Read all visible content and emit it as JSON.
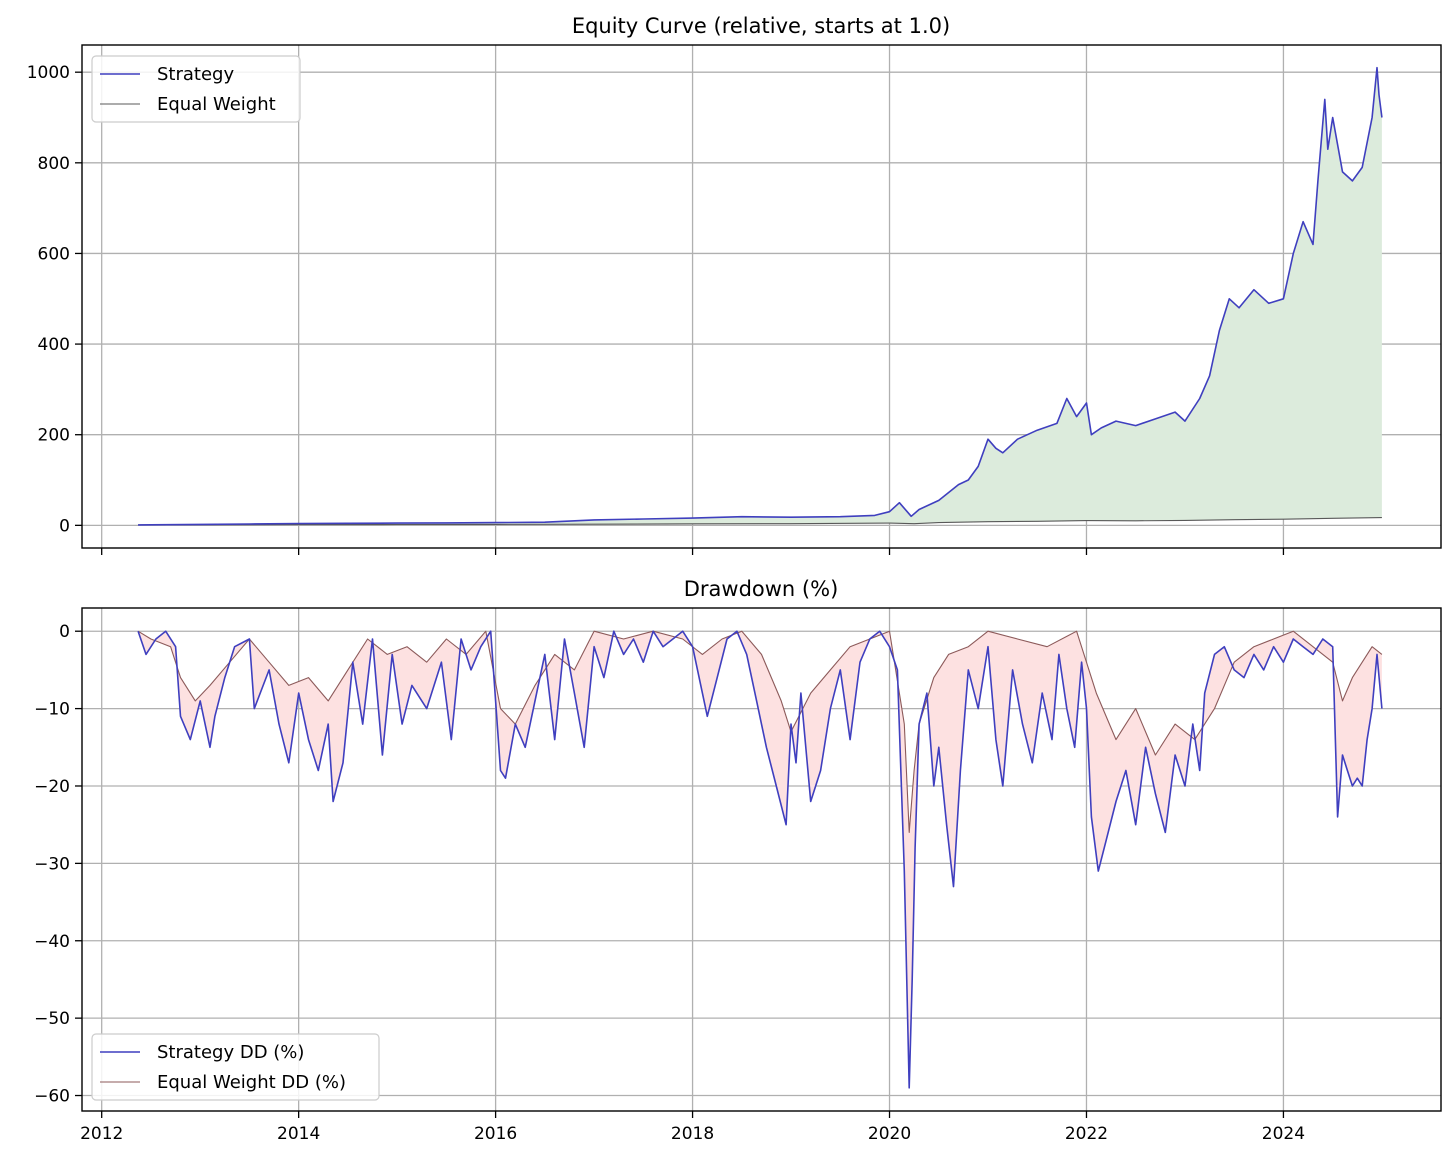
{
  "chart_data": [
    {
      "type": "line",
      "title": "Equity Curve (relative, starts at 1.0)",
      "xlabel": "",
      "ylabel": "",
      "xlim": [
        2011.8,
        2025.6
      ],
      "ylim": [
        -50,
        1060
      ],
      "x_ticks": [
        2012,
        2014,
        2016,
        2018,
        2020,
        2022,
        2024
      ],
      "x_tick_labels_visible": false,
      "y_ticks": [
        0,
        200,
        400,
        600,
        800,
        1000
      ],
      "y_tick_labels": [
        "0",
        "200",
        "400",
        "600",
        "800",
        "1000"
      ],
      "grid": true,
      "legend_position": "top-left",
      "fill_between_series": {
        "color": "#dcebdc",
        "description": "shaded area between Strategy and Equal Weight"
      },
      "series": [
        {
          "name": "Strategy",
          "color": "#3f3fbf",
          "x": [
            2012.37,
            2012.5,
            2013.0,
            2013.5,
            2014.0,
            2014.5,
            2015.0,
            2015.5,
            2016.0,
            2016.5,
            2017.0,
            2017.5,
            2018.0,
            2018.5,
            2019.0,
            2019.5,
            2019.85,
            2020.0,
            2020.1,
            2020.18,
            2020.22,
            2020.3,
            2020.5,
            2020.7,
            2020.8,
            2020.9,
            2021.0,
            2021.08,
            2021.15,
            2021.3,
            2021.5,
            2021.7,
            2021.8,
            2021.9,
            2022.0,
            2022.05,
            2022.15,
            2022.3,
            2022.5,
            2022.7,
            2022.9,
            2023.0,
            2023.15,
            2023.25,
            2023.35,
            2023.45,
            2023.55,
            2023.7,
            2023.85,
            2024.0,
            2024.1,
            2024.2,
            2024.3,
            2024.35,
            2024.42,
            2024.45,
            2024.5,
            2024.6,
            2024.7,
            2024.8,
            2024.9,
            2024.95,
            2024.97,
            2025.0
          ],
          "values": [
            1,
            1.3,
            2,
            3,
            4,
            4.5,
            5,
            5.5,
            6,
            7,
            12,
            14,
            16,
            19,
            18,
            19,
            22,
            30,
            50,
            30,
            20,
            35,
            55,
            90,
            100,
            130,
            190,
            170,
            160,
            190,
            210,
            225,
            280,
            240,
            270,
            200,
            215,
            230,
            220,
            235,
            250,
            230,
            280,
            330,
            430,
            500,
            480,
            520,
            490,
            500,
            600,
            670,
            620,
            760,
            940,
            830,
            900,
            780,
            760,
            790,
            900,
            1010,
            950,
            900
          ]
        },
        {
          "name": "Equal Weight",
          "color": "#595959",
          "x": [
            2012.37,
            2013.0,
            2014.0,
            2015.0,
            2016.0,
            2017.0,
            2018.0,
            2019.0,
            2020.0,
            2020.25,
            2020.5,
            2021.0,
            2021.5,
            2022.0,
            2022.5,
            2023.0,
            2023.5,
            2024.0,
            2024.5,
            2025.0
          ],
          "values": [
            1,
            1.3,
            1.6,
            1.8,
            2,
            2.6,
            3.3,
            3.7,
            5,
            3.6,
            6,
            8,
            9,
            10.5,
            10,
            11,
            12.5,
            13.5,
            15.5,
            17
          ]
        }
      ]
    },
    {
      "type": "line",
      "title": "Drawdown (%)",
      "xlabel": "",
      "ylabel": "",
      "xlim": [
        2011.8,
        2025.6
      ],
      "ylim": [
        -62,
        3
      ],
      "x_ticks": [
        2012,
        2014,
        2016,
        2018,
        2020,
        2022,
        2024
      ],
      "x_tick_labels": [
        "2012",
        "2014",
        "2016",
        "2018",
        "2020",
        "2022",
        "2024"
      ],
      "y_ticks": [
        0,
        -10,
        -20,
        -30,
        -40,
        -50,
        -60
      ],
      "y_tick_labels": [
        "0",
        "−10",
        "−20",
        "−30",
        "−40",
        "−50",
        "−60"
      ],
      "grid": true,
      "legend_position": "bottom-left",
      "fill_between_series": {
        "color": "#fde1e1",
        "description": "shaded area between Strategy DD and Equal Weight DD"
      },
      "series": [
        {
          "name": "Strategy DD (%)",
          "color": "#3f3fbf",
          "x": [
            2012.37,
            2012.45,
            2012.55,
            2012.65,
            2012.75,
            2012.8,
            2012.9,
            2013.0,
            2013.1,
            2013.15,
            2013.25,
            2013.35,
            2013.5,
            2013.55,
            2013.7,
            2013.8,
            2013.9,
            2014.0,
            2014.1,
            2014.2,
            2014.3,
            2014.35,
            2014.45,
            2014.55,
            2014.65,
            2014.75,
            2014.85,
            2014.95,
            2015.05,
            2015.15,
            2015.3,
            2015.45,
            2015.55,
            2015.65,
            2015.75,
            2015.85,
            2015.95,
            2016.05,
            2016.1,
            2016.2,
            2016.3,
            2016.4,
            2016.5,
            2016.6,
            2016.7,
            2016.8,
            2016.9,
            2017.0,
            2017.1,
            2017.2,
            2017.3,
            2017.4,
            2017.5,
            2017.6,
            2017.7,
            2017.8,
            2017.9,
            2018.0,
            2018.1,
            2018.15,
            2018.25,
            2018.35,
            2018.45,
            2018.55,
            2018.65,
            2018.75,
            2018.85,
            2018.95,
            2019.0,
            2019.05,
            2019.1,
            2019.2,
            2019.3,
            2019.4,
            2019.5,
            2019.6,
            2019.7,
            2019.8,
            2019.9,
            2020.0,
            2020.08,
            2020.15,
            2020.2,
            2020.23,
            2020.26,
            2020.3,
            2020.38,
            2020.45,
            2020.5,
            2020.58,
            2020.65,
            2020.72,
            2020.8,
            2020.9,
            2021.0,
            2021.08,
            2021.15,
            2021.25,
            2021.35,
            2021.45,
            2021.55,
            2021.65,
            2021.72,
            2021.8,
            2021.88,
            2021.95,
            2022.0,
            2022.05,
            2022.12,
            2022.2,
            2022.3,
            2022.4,
            2022.5,
            2022.6,
            2022.7,
            2022.8,
            2022.9,
            2023.0,
            2023.08,
            2023.15,
            2023.2,
            2023.3,
            2023.4,
            2023.5,
            2023.6,
            2023.7,
            2023.8,
            2023.9,
            2024.0,
            2024.1,
            2024.2,
            2024.3,
            2024.4,
            2024.5,
            2024.55,
            2024.6,
            2024.65,
            2024.7,
            2024.75,
            2024.8,
            2024.85,
            2024.9,
            2024.95,
            2025.0
          ],
          "values": [
            0,
            -3,
            -1,
            0,
            -2,
            -11,
            -14,
            -9,
            -15,
            -11,
            -6,
            -2,
            -1,
            -10,
            -5,
            -12,
            -17,
            -8,
            -14,
            -18,
            -12,
            -22,
            -17,
            -4,
            -12,
            -1,
            -16,
            -3,
            -12,
            -7,
            -10,
            -4,
            -14,
            -1,
            -5,
            -2,
            0,
            -18,
            -19,
            -12,
            -15,
            -9,
            -3,
            -14,
            -1,
            -8,
            -15,
            -2,
            -6,
            0,
            -3,
            -1,
            -4,
            0,
            -2,
            -1,
            0,
            -2,
            -8,
            -11,
            -6,
            -1,
            0,
            -3,
            -9,
            -15,
            -20,
            -25,
            -12,
            -17,
            -8,
            -22,
            -18,
            -10,
            -5,
            -14,
            -4,
            -1,
            0,
            -2,
            -5,
            -31,
            -59,
            -45,
            -28,
            -12,
            -8,
            -20,
            -15,
            -25,
            -33,
            -18,
            -5,
            -10,
            -2,
            -14,
            -20,
            -5,
            -12,
            -17,
            -8,
            -14,
            -3,
            -10,
            -15,
            -4,
            -10,
            -24,
            -31,
            -27,
            -22,
            -18,
            -25,
            -15,
            -21,
            -26,
            -16,
            -20,
            -12,
            -18,
            -8,
            -3,
            -2,
            -5,
            -6,
            -3,
            -5,
            -2,
            -4,
            -1,
            -2,
            -3,
            -1,
            -2,
            -24,
            -16,
            -18,
            -20,
            -19,
            -20,
            -14,
            -10,
            -3,
            -10
          ]
        },
        {
          "name": "Equal Weight DD (%)",
          "color": "#8c5a5a",
          "x": [
            2012.37,
            2012.5,
            2012.7,
            2012.8,
            2012.95,
            2013.1,
            2013.3,
            2013.5,
            2013.7,
            2013.9,
            2014.1,
            2014.3,
            2014.5,
            2014.7,
            2014.9,
            2015.1,
            2015.3,
            2015.5,
            2015.7,
            2015.9,
            2016.05,
            2016.2,
            2016.4,
            2016.6,
            2016.8,
            2017.0,
            2017.3,
            2017.6,
            2017.9,
            2018.1,
            2018.3,
            2018.5,
            2018.7,
            2018.9,
            2019.0,
            2019.2,
            2019.4,
            2019.6,
            2019.8,
            2020.0,
            2020.15,
            2020.2,
            2020.25,
            2020.3,
            2020.45,
            2020.6,
            2020.8,
            2021.0,
            2021.3,
            2021.6,
            2021.9,
            2022.1,
            2022.3,
            2022.5,
            2022.7,
            2022.9,
            2023.1,
            2023.3,
            2023.5,
            2023.7,
            2023.9,
            2024.1,
            2024.3,
            2024.5,
            2024.6,
            2024.7,
            2024.9,
            2025.0
          ],
          "values": [
            0,
            -1,
            -2,
            -6,
            -9,
            -7,
            -4,
            -1,
            -4,
            -7,
            -6,
            -9,
            -5,
            -1,
            -3,
            -2,
            -4,
            -1,
            -3,
            0,
            -10,
            -12,
            -7,
            -3,
            -5,
            0,
            -1,
            0,
            -1,
            -3,
            -1,
            0,
            -3,
            -9,
            -13,
            -8,
            -5,
            -2,
            -1,
            0,
            -12,
            -26,
            -18,
            -12,
            -6,
            -3,
            -2,
            0,
            -1,
            -2,
            0,
            -8,
            -14,
            -10,
            -16,
            -12,
            -14,
            -10,
            -4,
            -2,
            -1,
            0,
            -2,
            -4,
            -9,
            -6,
            -2,
            -3
          ]
        }
      ]
    }
  ]
}
